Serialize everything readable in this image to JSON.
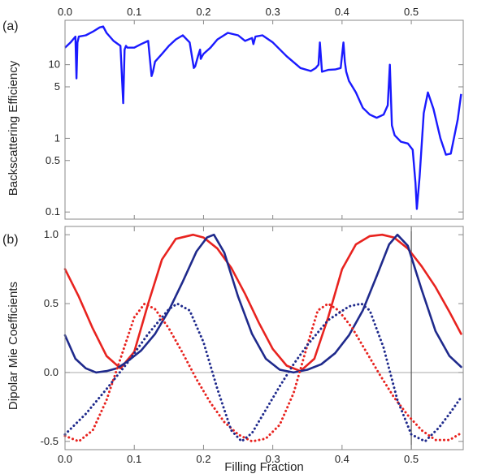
{
  "colors": {
    "frame": "#888888",
    "blue_curve": "#1a1aff",
    "red": "#e8231f",
    "navy": "#1f2a8c",
    "zero_line": "#aaaaaa",
    "marker_line": "#555555"
  },
  "chart_data": [
    {
      "panel_label": "(a)",
      "type": "line",
      "xlabel": "",
      "ylabel": "Backscattering Efficiency",
      "xlim": [
        0,
        0.575
      ],
      "ylim": [
        0.08,
        40
      ],
      "yscale": "log",
      "x_ticks": [
        0.0,
        0.1,
        0.2,
        0.3,
        0.4,
        0.5
      ],
      "x_tick_labels_top": [
        "0.0",
        "0.1",
        "0.2",
        "0.3",
        "0.4",
        "0.5"
      ],
      "y_ticks": [
        10,
        5,
        1,
        0.5,
        0.1
      ],
      "y_tick_labels": [
        "10",
        "5",
        "1",
        "0.5",
        "0.1"
      ],
      "grid": false,
      "series": [
        {
          "x": [
            0.0,
            0.008,
            0.015,
            0.0165,
            0.018,
            0.02,
            0.03,
            0.04,
            0.05,
            0.055,
            0.06,
            0.07,
            0.08,
            0.084,
            0.086,
            0.088,
            0.09,
            0.1,
            0.11,
            0.12,
            0.125,
            0.127,
            0.13,
            0.14,
            0.15,
            0.16,
            0.17,
            0.18,
            0.186,
            0.188,
            0.192,
            0.195,
            0.196,
            0.198,
            0.2,
            0.21,
            0.22,
            0.235,
            0.25,
            0.26,
            0.27,
            0.272,
            0.275,
            0.285,
            0.3,
            0.32,
            0.34,
            0.355,
            0.362,
            0.366,
            0.368,
            0.371,
            0.38,
            0.39,
            0.398,
            0.402,
            0.404,
            0.406,
            0.41,
            0.42,
            0.43,
            0.44,
            0.45,
            0.46,
            0.466,
            0.469,
            0.472,
            0.476,
            0.485,
            0.495,
            0.502,
            0.506,
            0.508,
            0.512,
            0.518,
            0.524,
            0.532,
            0.542,
            0.55,
            0.557,
            0.567,
            0.572
          ],
          "y": [
            17,
            20,
            24,
            6.5,
            20,
            24,
            25,
            28,
            32,
            33,
            27,
            21,
            18,
            3,
            16,
            18,
            17,
            17,
            19,
            21,
            7,
            8,
            11,
            14,
            18,
            22,
            25,
            20,
            9,
            9.5,
            13,
            16,
            12,
            13,
            14,
            17,
            22,
            27,
            25,
            21,
            23,
            19,
            24,
            25,
            20,
            13,
            9,
            8.2,
            9,
            10,
            20,
            8,
            8.5,
            8.6,
            9,
            20,
            11,
            8,
            6,
            4.2,
            2.6,
            2.1,
            1.9,
            2.1,
            2.8,
            10,
            1.5,
            1.1,
            0.9,
            0.85,
            0.7,
            0.25,
            0.11,
            0.3,
            2.2,
            4.2,
            2.5,
            1.0,
            0.6,
            0.62,
            1.8,
            4.0
          ]
        }
      ]
    },
    {
      "panel_label": "(b)",
      "type": "line",
      "xlabel": "Filling Fraction",
      "ylabel": "Dipolar Mie Coefficients",
      "xlim": [
        0,
        0.575
      ],
      "ylim": [
        -0.56,
        1.06
      ],
      "x_ticks": [
        0.0,
        0.1,
        0.2,
        0.3,
        0.4,
        0.5
      ],
      "x_tick_labels": [
        "0.0",
        "0.1",
        "0.2",
        "0.3",
        "0.4",
        "0.5"
      ],
      "y_ticks": [
        1.0,
        0.5,
        0.0,
        -0.5
      ],
      "y_tick_labels": [
        "1.0",
        "0.5",
        "0.0",
        "-0.5"
      ],
      "zero_line": true,
      "vertical_marker_x": 0.5,
      "grid": false,
      "series": [
        {
          "color_key": "red",
          "style": "solid",
          "x": [
            0.0,
            0.02,
            0.04,
            0.06,
            0.08,
            0.1,
            0.12,
            0.14,
            0.16,
            0.185,
            0.2,
            0.22,
            0.24,
            0.26,
            0.28,
            0.3,
            0.32,
            0.34,
            0.36,
            0.38,
            0.4,
            0.42,
            0.44,
            0.458,
            0.475,
            0.495,
            0.515,
            0.535,
            0.555,
            0.572
          ],
          "y": [
            0.75,
            0.55,
            0.32,
            0.12,
            0.03,
            0.15,
            0.5,
            0.82,
            0.97,
            1.0,
            0.98,
            0.9,
            0.76,
            0.57,
            0.36,
            0.17,
            0.05,
            0.01,
            0.1,
            0.4,
            0.75,
            0.93,
            0.99,
            1.0,
            0.98,
            0.9,
            0.77,
            0.62,
            0.44,
            0.28
          ]
        },
        {
          "color_key": "navy",
          "style": "solid",
          "x": [
            0.0,
            0.015,
            0.03,
            0.045,
            0.06,
            0.075,
            0.09,
            0.11,
            0.13,
            0.15,
            0.17,
            0.19,
            0.205,
            0.215,
            0.23,
            0.25,
            0.27,
            0.29,
            0.31,
            0.33,
            0.35,
            0.37,
            0.39,
            0.41,
            0.43,
            0.45,
            0.468,
            0.48,
            0.495,
            0.515,
            0.535,
            0.555,
            0.572
          ],
          "y": [
            0.27,
            0.1,
            0.03,
            0.0,
            0.01,
            0.03,
            0.08,
            0.16,
            0.28,
            0.45,
            0.66,
            0.88,
            0.98,
            1.0,
            0.87,
            0.55,
            0.28,
            0.1,
            0.02,
            0.0,
            0.02,
            0.06,
            0.14,
            0.27,
            0.45,
            0.7,
            0.93,
            1.0,
            0.92,
            0.6,
            0.3,
            0.12,
            0.04
          ]
        },
        {
          "color_key": "red",
          "style": "dotted",
          "x": [
            0.0,
            0.02,
            0.04,
            0.06,
            0.08,
            0.1,
            0.115,
            0.13,
            0.15,
            0.17,
            0.19,
            0.21,
            0.23,
            0.25,
            0.27,
            0.29,
            0.31,
            0.33,
            0.35,
            0.365,
            0.38,
            0.395,
            0.415,
            0.435,
            0.455,
            0.475,
            0.495,
            0.515,
            0.535,
            0.555,
            0.572
          ],
          "y": [
            -0.46,
            -0.5,
            -0.42,
            -0.2,
            0.1,
            0.4,
            0.5,
            0.46,
            0.32,
            0.14,
            -0.05,
            -0.22,
            -0.36,
            -0.45,
            -0.5,
            -0.48,
            -0.38,
            -0.15,
            0.2,
            0.45,
            0.5,
            0.45,
            0.32,
            0.15,
            -0.02,
            -0.18,
            -0.31,
            -0.42,
            -0.49,
            -0.49,
            -0.44
          ]
        },
        {
          "color_key": "navy",
          "style": "dotted",
          "x": [
            0.0,
            0.03,
            0.06,
            0.09,
            0.12,
            0.15,
            0.162,
            0.18,
            0.2,
            0.22,
            0.24,
            0.255,
            0.27,
            0.29,
            0.31,
            0.33,
            0.35,
            0.38,
            0.41,
            0.428,
            0.44,
            0.46,
            0.48,
            0.5,
            0.52,
            0.54,
            0.555,
            0.572
          ],
          "y": [
            -0.45,
            -0.3,
            -0.12,
            0.07,
            0.28,
            0.46,
            0.5,
            0.45,
            0.22,
            -0.12,
            -0.42,
            -0.5,
            -0.44,
            -0.27,
            -0.1,
            0.06,
            0.2,
            0.38,
            0.48,
            0.5,
            0.45,
            0.18,
            -0.2,
            -0.45,
            -0.5,
            -0.4,
            -0.3,
            -0.18
          ]
        }
      ]
    }
  ]
}
